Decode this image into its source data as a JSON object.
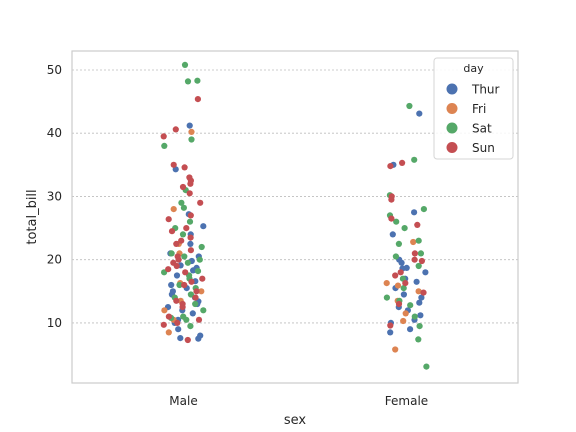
{
  "chart_data": {
    "type": "scatter",
    "subtype": "strip",
    "title": "",
    "xlabel": "sex",
    "ylabel": "total_bill",
    "categories": [
      "Male",
      "Female"
    ],
    "ylim": [
      0.5,
      53
    ],
    "yticks": [
      10,
      20,
      30,
      40,
      50
    ],
    "grid": "y",
    "legend": {
      "title": "day",
      "placement": "top-right"
    },
    "series": [
      {
        "name": "Thur",
        "color": "#4c72b0",
        "points": [
          {
            "x": "Male",
            "y": 41.2
          },
          {
            "x": "Male",
            "y": 34.3
          },
          {
            "x": "Male",
            "y": 27.2
          },
          {
            "x": "Male",
            "y": 25.3
          },
          {
            "x": "Male",
            "y": 24.0
          },
          {
            "x": "Male",
            "y": 22.5
          },
          {
            "x": "Male",
            "y": 21.0
          },
          {
            "x": "Male",
            "y": 20.5
          },
          {
            "x": "Male",
            "y": 19.8
          },
          {
            "x": "Male",
            "y": 18.7
          },
          {
            "x": "Male",
            "y": 18.3
          },
          {
            "x": "Male",
            "y": 17.5
          },
          {
            "x": "Male",
            "y": 16.6
          },
          {
            "x": "Male",
            "y": 16.0
          },
          {
            "x": "Male",
            "y": 15.5
          },
          {
            "x": "Male",
            "y": 15.0
          },
          {
            "x": "Male",
            "y": 14.5
          },
          {
            "x": "Male",
            "y": 14.0
          },
          {
            "x": "Male",
            "y": 13.4
          },
          {
            "x": "Male",
            "y": 13.0
          },
          {
            "x": "Male",
            "y": 12.5
          },
          {
            "x": "Male",
            "y": 12.0
          },
          {
            "x": "Male",
            "y": 11.5
          },
          {
            "x": "Male",
            "y": 10.5
          },
          {
            "x": "Male",
            "y": 10.0
          },
          {
            "x": "Male",
            "y": 9.0
          },
          {
            "x": "Male",
            "y": 8.0
          },
          {
            "x": "Male",
            "y": 7.5
          },
          {
            "x": "Male",
            "y": 7.6
          },
          {
            "x": "Male",
            "y": 19.1
          },
          {
            "x": "Female",
            "y": 43.1
          },
          {
            "x": "Female",
            "y": 35.0
          },
          {
            "x": "Female",
            "y": 24.0
          },
          {
            "x": "Female",
            "y": 20.0
          },
          {
            "x": "Female",
            "y": 19.5
          },
          {
            "x": "Female",
            "y": 18.7
          },
          {
            "x": "Female",
            "y": 18.0
          },
          {
            "x": "Female",
            "y": 17.0
          },
          {
            "x": "Female",
            "y": 16.5
          },
          {
            "x": "Female",
            "y": 15.5
          },
          {
            "x": "Female",
            "y": 14.5
          },
          {
            "x": "Female",
            "y": 14.0
          },
          {
            "x": "Female",
            "y": 13.2
          },
          {
            "x": "Female",
            "y": 12.5
          },
          {
            "x": "Female",
            "y": 12.0
          },
          {
            "x": "Female",
            "y": 11.2
          },
          {
            "x": "Female",
            "y": 10.5
          },
          {
            "x": "Female",
            "y": 10.0
          },
          {
            "x": "Female",
            "y": 9.0
          },
          {
            "x": "Female",
            "y": 8.5
          },
          {
            "x": "Female",
            "y": 27.5
          },
          {
            "x": "Female",
            "y": 18.6
          }
        ]
      },
      {
        "name": "Fri",
        "color": "#dd8452",
        "points": [
          {
            "x": "Male",
            "y": 40.2
          },
          {
            "x": "Male",
            "y": 28.0
          },
          {
            "x": "Male",
            "y": 22.5
          },
          {
            "x": "Male",
            "y": 21.0
          },
          {
            "x": "Male",
            "y": 16.3
          },
          {
            "x": "Male",
            "y": 15.0
          },
          {
            "x": "Male",
            "y": 13.5
          },
          {
            "x": "Male",
            "y": 12.0
          },
          {
            "x": "Male",
            "y": 10.5
          },
          {
            "x": "Male",
            "y": 8.5
          },
          {
            "x": "Female",
            "y": 22.8
          },
          {
            "x": "Female",
            "y": 16.3
          },
          {
            "x": "Female",
            "y": 15.9
          },
          {
            "x": "Female",
            "y": 13.5
          },
          {
            "x": "Female",
            "y": 10.3
          },
          {
            "x": "Female",
            "y": 5.8
          },
          {
            "x": "Female",
            "y": 15.0
          },
          {
            "x": "Female",
            "y": 11.5
          }
        ]
      },
      {
        "name": "Sat",
        "color": "#55a868",
        "points": [
          {
            "x": "Male",
            "y": 50.8
          },
          {
            "x": "Male",
            "y": 48.3
          },
          {
            "x": "Male",
            "y": 48.2
          },
          {
            "x": "Male",
            "y": 39.0
          },
          {
            "x": "Male",
            "y": 38.0
          },
          {
            "x": "Male",
            "y": 31.0
          },
          {
            "x": "Male",
            "y": 29.0
          },
          {
            "x": "Male",
            "y": 28.2
          },
          {
            "x": "Male",
            "y": 26.0
          },
          {
            "x": "Male",
            "y": 25.0
          },
          {
            "x": "Male",
            "y": 24.0
          },
          {
            "x": "Male",
            "y": 22.0
          },
          {
            "x": "Male",
            "y": 21.0
          },
          {
            "x": "Male",
            "y": 20.5
          },
          {
            "x": "Male",
            "y": 20.0
          },
          {
            "x": "Male",
            "y": 19.5
          },
          {
            "x": "Male",
            "y": 18.0
          },
          {
            "x": "Male",
            "y": 17.5
          },
          {
            "x": "Male",
            "y": 17.0
          },
          {
            "x": "Male",
            "y": 16.0
          },
          {
            "x": "Male",
            "y": 15.5
          },
          {
            "x": "Male",
            "y": 14.5
          },
          {
            "x": "Male",
            "y": 14.0
          },
          {
            "x": "Male",
            "y": 13.0
          },
          {
            "x": "Male",
            "y": 12.0
          },
          {
            "x": "Male",
            "y": 11.0
          },
          {
            "x": "Male",
            "y": 10.8
          },
          {
            "x": "Male",
            "y": 10.5
          },
          {
            "x": "Male",
            "y": 9.5
          },
          {
            "x": "Male",
            "y": 18.2
          },
          {
            "x": "Female",
            "y": 44.3
          },
          {
            "x": "Female",
            "y": 35.8
          },
          {
            "x": "Female",
            "y": 30.2
          },
          {
            "x": "Female",
            "y": 28.0
          },
          {
            "x": "Female",
            "y": 27.0
          },
          {
            "x": "Female",
            "y": 26.0
          },
          {
            "x": "Female",
            "y": 25.0
          },
          {
            "x": "Female",
            "y": 23.0
          },
          {
            "x": "Female",
            "y": 22.5
          },
          {
            "x": "Female",
            "y": 21.0
          },
          {
            "x": "Female",
            "y": 20.5
          },
          {
            "x": "Female",
            "y": 19.0
          },
          {
            "x": "Female",
            "y": 17.0
          },
          {
            "x": "Female",
            "y": 15.5
          },
          {
            "x": "Female",
            "y": 14.0
          },
          {
            "x": "Female",
            "y": 13.5
          },
          {
            "x": "Female",
            "y": 11.0
          },
          {
            "x": "Female",
            "y": 9.5
          },
          {
            "x": "Female",
            "y": 7.4
          },
          {
            "x": "Female",
            "y": 3.1
          },
          {
            "x": "Female",
            "y": 12.8
          }
        ]
      },
      {
        "name": "Sun",
        "color": "#c44e52",
        "points": [
          {
            "x": "Male",
            "y": 45.4
          },
          {
            "x": "Male",
            "y": 40.6
          },
          {
            "x": "Male",
            "y": 39.5
          },
          {
            "x": "Male",
            "y": 35.0
          },
          {
            "x": "Male",
            "y": 34.6
          },
          {
            "x": "Male",
            "y": 33.0
          },
          {
            "x": "Male",
            "y": 32.5
          },
          {
            "x": "Male",
            "y": 32.0
          },
          {
            "x": "Male",
            "y": 31.5
          },
          {
            "x": "Male",
            "y": 30.5
          },
          {
            "x": "Male",
            "y": 29.0
          },
          {
            "x": "Male",
            "y": 27.0
          },
          {
            "x": "Male",
            "y": 26.4
          },
          {
            "x": "Male",
            "y": 25.0
          },
          {
            "x": "Male",
            "y": 24.5
          },
          {
            "x": "Male",
            "y": 23.5
          },
          {
            "x": "Male",
            "y": 23.0
          },
          {
            "x": "Male",
            "y": 22.5
          },
          {
            "x": "Male",
            "y": 21.5
          },
          {
            "x": "Male",
            "y": 20.5
          },
          {
            "x": "Male",
            "y": 20.0
          },
          {
            "x": "Male",
            "y": 19.5
          },
          {
            "x": "Male",
            "y": 19.0
          },
          {
            "x": "Male",
            "y": 18.5
          },
          {
            "x": "Male",
            "y": 18.0
          },
          {
            "x": "Male",
            "y": 17.0
          },
          {
            "x": "Male",
            "y": 16.5
          },
          {
            "x": "Male",
            "y": 16.0
          },
          {
            "x": "Male",
            "y": 15.0
          },
          {
            "x": "Male",
            "y": 14.0
          },
          {
            "x": "Male",
            "y": 13.5
          },
          {
            "x": "Male",
            "y": 13.0
          },
          {
            "x": "Male",
            "y": 12.5
          },
          {
            "x": "Male",
            "y": 11.0
          },
          {
            "x": "Male",
            "y": 10.5
          },
          {
            "x": "Male",
            "y": 10.0
          },
          {
            "x": "Male",
            "y": 9.7
          },
          {
            "x": "Male",
            "y": 7.3
          },
          {
            "x": "Female",
            "y": 35.3
          },
          {
            "x": "Female",
            "y": 34.8
          },
          {
            "x": "Female",
            "y": 30.0
          },
          {
            "x": "Female",
            "y": 29.5
          },
          {
            "x": "Female",
            "y": 26.5
          },
          {
            "x": "Female",
            "y": 25.5
          },
          {
            "x": "Female",
            "y": 21.0
          },
          {
            "x": "Female",
            "y": 20.0
          },
          {
            "x": "Female",
            "y": 18.0
          },
          {
            "x": "Female",
            "y": 17.5
          },
          {
            "x": "Female",
            "y": 16.3
          },
          {
            "x": "Female",
            "y": 14.8
          },
          {
            "x": "Female",
            "y": 13.0
          },
          {
            "x": "Female",
            "y": 9.6
          },
          {
            "x": "Female",
            "y": 19.8
          }
        ]
      }
    ]
  }
}
